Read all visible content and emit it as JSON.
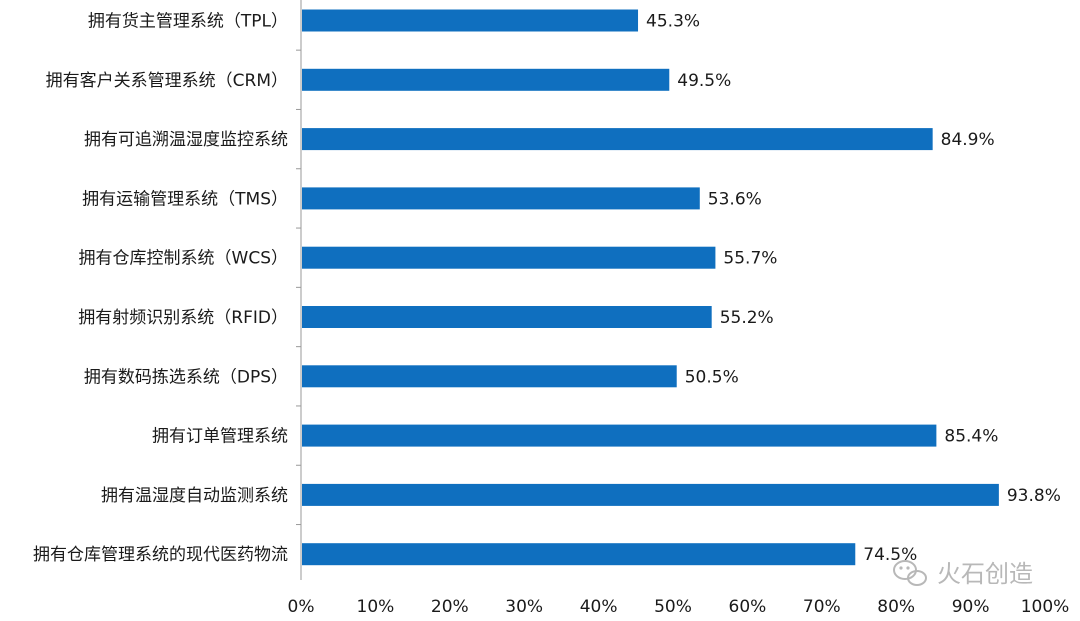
{
  "chart_data": {
    "type": "bar",
    "orientation": "horizontal",
    "categories": [
      "拥有货主管理系统（TPL）",
      "拥有客户关系管理系统（CRM）",
      "拥有可追溯温湿度监控系统",
      "拥有运输管理系统（TMS）",
      "拥有仓库控制系统（WCS）",
      "拥有射频识别系统（RFID）",
      "拥有数码拣选系统（DPS）",
      "拥有订单管理系统",
      "拥有温湿度自动监测系统",
      "拥有仓库管理系统的现代医药物流"
    ],
    "values": [
      45.3,
      49.5,
      84.9,
      53.6,
      55.7,
      55.2,
      50.5,
      85.4,
      93.8,
      74.5
    ],
    "value_labels": [
      "45.3%",
      "49.5%",
      "84.9%",
      "53.6%",
      "55.7%",
      "55.2%",
      "50.5%",
      "85.4%",
      "93.8%",
      "74.5%"
    ],
    "xlim": [
      0,
      100
    ],
    "x_ticks": [
      "0%",
      "10%",
      "20%",
      "30%",
      "40%",
      "50%",
      "60%",
      "70%",
      "80%",
      "90%",
      "100%"
    ],
    "bar_color": "#0f6fbf",
    "grid": false,
    "legend": "none"
  },
  "watermark": {
    "text": "火石创造",
    "icon": "wechat-icon"
  }
}
